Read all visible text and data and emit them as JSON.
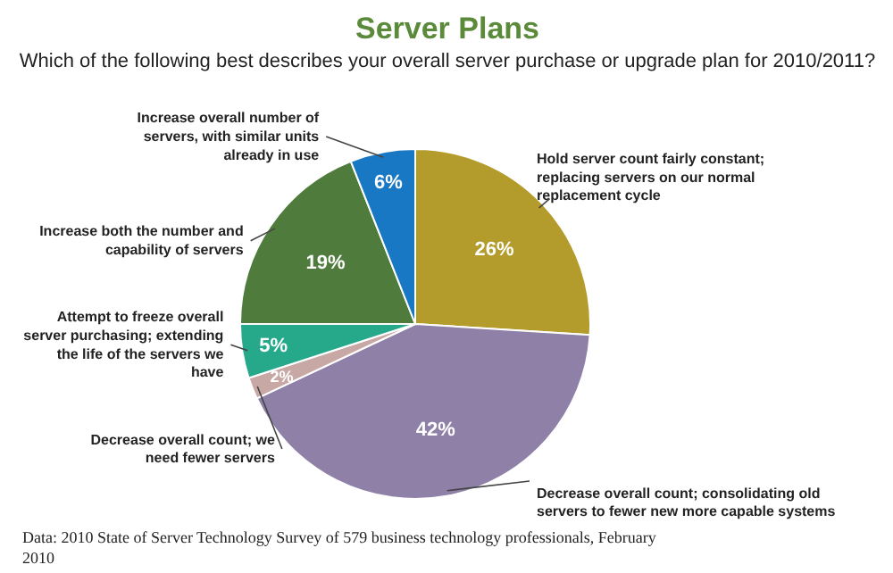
{
  "chart_data": {
    "type": "pie",
    "title": "Server Plans",
    "subtitle": "Which of the following best describes your overall server purchase or upgrade plan for 2010/2011?",
    "categories": [
      "Hold server count fairly constant; replacing servers on our normal replacement cycle",
      "Decrease overall count; consolidating old servers to fewer new more capable systems",
      "Decrease overall count; we need fewer servers",
      "Attempt to freeze overall server purchasing; extending the life of the servers we have",
      "Increase both the number and capability of servers",
      "Increase overall number of servers, with similar units already in use"
    ],
    "values": [
      26,
      42,
      2,
      5,
      19,
      6
    ],
    "colors": [
      "#b39c2c",
      "#8f80a8",
      "#c8a8a4",
      "#26a98a",
      "#4f7c3c",
      "#1878c4"
    ],
    "value_labels": [
      "26%",
      "42%",
      "2%",
      "5%",
      "19%",
      "6%"
    ],
    "annotations": [
      "Data: 2010 State of Server Technology Survey of 579 business technology professionals, February 2010"
    ]
  }
}
